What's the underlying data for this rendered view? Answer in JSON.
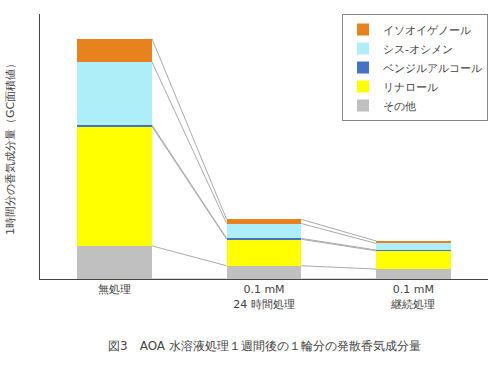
{
  "chart_data": {
    "type": "bar",
    "stacked": true,
    "categories": [
      "無処理",
      "0.1 mM\n24 時間処理",
      "0.1 mM\n継続処理"
    ],
    "series": [
      {
        "name": "その他",
        "color": "#C0C0C0",
        "values": [
          20,
          8,
          6
        ]
      },
      {
        "name": "リナロール",
        "color": "#FFFF00",
        "values": [
          72,
          16,
          11
        ]
      },
      {
        "name": "ベンジルアルコール",
        "color": "#4472C4",
        "values": [
          1,
          0.5,
          0.5
        ]
      },
      {
        "name": "シス-オシメン",
        "color": "#AEEEF8",
        "values": [
          38,
          9,
          4
        ]
      },
      {
        "name": "イソオイゲノール",
        "color": "#E8821E",
        "values": [
          14,
          2.5,
          1.5
        ]
      }
    ],
    "ylabel": "1時間分の香気成分量（GC面積値）",
    "ylim": [
      0,
      160
    ],
    "grid": false,
    "legend": "upper right",
    "tick_labels": "x",
    "annotations": [
      "図3　AOA 水溶液処理１週間後の１輪分の発散香気成分量"
    ]
  }
}
